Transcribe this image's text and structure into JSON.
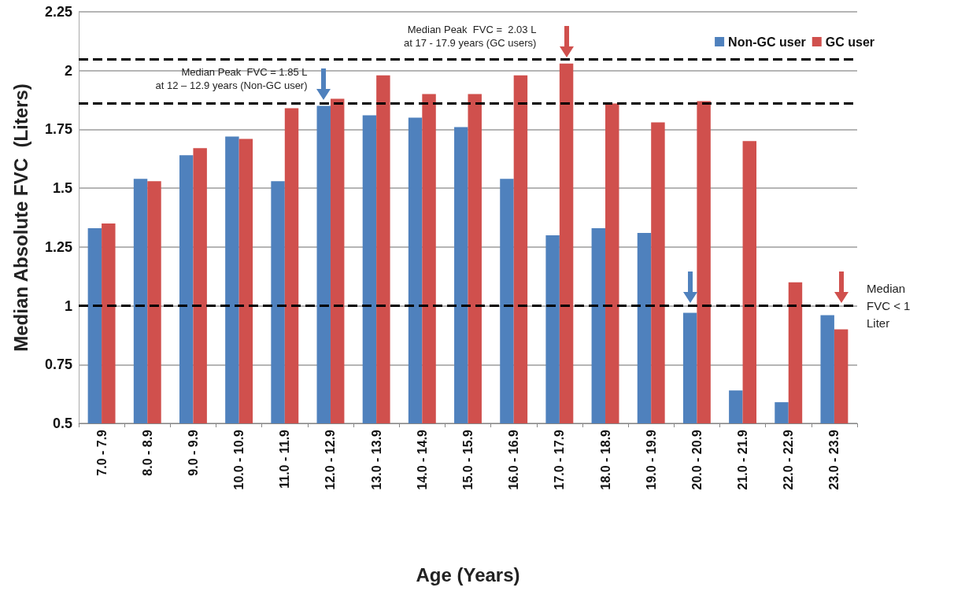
{
  "chart_data": {
    "type": "bar",
    "xlabel": "Age (Years)",
    "ylabel": "Median Absolute FVC  (Liters)",
    "categories": [
      "7.0 - 7.9",
      "8.0 - 8.9",
      "9.0 - 9.9",
      "10.0 - 10.9",
      "11.0 - 11.9",
      "12.0 - 12.9",
      "13.0 - 13.9",
      "14.0 - 14.9",
      "15.0 - 15.9",
      "16.0 - 16.9",
      "17.0 - 17.9",
      "18.0 - 18.9",
      "19.0 - 19.9",
      "20.0 - 20.9",
      "21.0 - 21.9",
      "22.0 - 22.9",
      "23.0 - 23.9"
    ],
    "series": [
      {
        "name": "Non-GC user",
        "color": "#4f81bd",
        "values": [
          1.33,
          1.54,
          1.64,
          1.72,
          1.53,
          1.85,
          1.81,
          1.8,
          1.76,
          1.54,
          1.3,
          1.33,
          1.31,
          0.97,
          0.64,
          0.59,
          0.96
        ]
      },
      {
        "name": "GC user",
        "color": "#d0504d",
        "values": [
          1.35,
          1.53,
          1.67,
          1.71,
          1.84,
          1.88,
          1.98,
          1.9,
          1.9,
          1.98,
          2.03,
          1.86,
          1.78,
          1.87,
          1.7,
          1.1,
          0.9
        ]
      }
    ],
    "ylim": [
      0.5,
      2.25
    ],
    "yticks": [
      0.5,
      0.75,
      1,
      1.25,
      1.5,
      1.75,
      2,
      2.25
    ],
    "grid": "y",
    "legend": "top right",
    "ref_lines": [
      {
        "axis": "y",
        "value": 2.05,
        "label": null,
        "line_style": "dashed",
        "color": "#000000"
      },
      {
        "axis": "y",
        "value": 1.86,
        "label": null,
        "line_style": "dashed",
        "color": "#000000"
      },
      {
        "axis": "y",
        "value": 1,
        "label": "Median\nFVC < 1\nLiter",
        "line_style": "dashed",
        "color": "#000000"
      }
    ],
    "annotations": [
      {
        "text": "Median Peak  FVC = 1.85 L\nat 12 – 12.9 years (Non-GC user)",
        "x": "12.0 - 12.9",
        "y": 1.85
      },
      {
        "text": "Median Peak  FVC =  2.03 L\nat 17 - 17.9 years (GC users)",
        "x": "17.0 - 17.9",
        "y": 2.03
      }
    ]
  }
}
